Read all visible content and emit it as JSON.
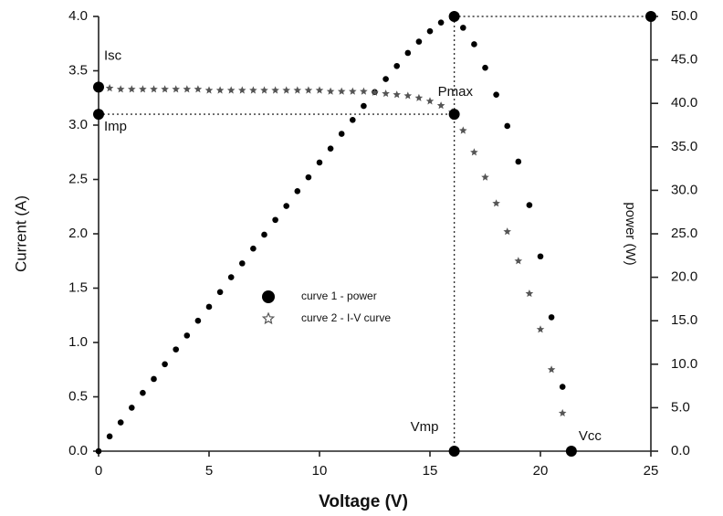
{
  "chart_data": {
    "type": "scatter",
    "x_label": "Voltage (V)",
    "y_label": "Current (A)",
    "y2_label": "power (W)",
    "x": [
      0,
      0.5,
      1,
      1.5,
      2,
      2.5,
      3,
      3.5,
      4,
      4.5,
      5,
      5.5,
      6,
      6.5,
      7,
      7.5,
      8,
      8.5,
      9,
      9.5,
      10,
      10.5,
      11,
      11.5,
      12,
      12.5,
      13,
      13.5,
      14,
      14.5,
      15,
      15.5,
      16,
      16.1,
      16.5,
      17,
      17.5,
      18,
      18.5,
      19,
      19.5,
      20,
      20.5,
      21,
      21.4
    ],
    "series": [
      {
        "name": "curve 1 - power",
        "color": "#000000",
        "marker": "circle",
        "axis": "y2",
        "values": [
          0,
          1.7,
          3.3,
          5.0,
          6.7,
          8.3,
          10.0,
          11.7,
          13.3,
          15.0,
          16.6,
          18.3,
          20.0,
          21.6,
          23.3,
          24.9,
          26.6,
          28.2,
          29.9,
          31.5,
          33.2,
          34.8,
          36.5,
          38.1,
          39.7,
          41.3,
          42.8,
          44.3,
          45.8,
          47.1,
          48.3,
          49.3,
          49.9,
          49.9,
          48.7,
          46.8,
          44.1,
          41.0,
          37.4,
          33.3,
          28.3,
          22.4,
          15.4,
          7.4,
          0
        ]
      },
      {
        "name": "curve 2 - I-V curve",
        "color": "#555555",
        "marker": "star",
        "axis": "y",
        "values": [
          3.35,
          3.34,
          3.33,
          3.33,
          3.33,
          3.33,
          3.33,
          3.33,
          3.33,
          3.33,
          3.32,
          3.32,
          3.32,
          3.32,
          3.32,
          3.32,
          3.32,
          3.32,
          3.32,
          3.32,
          3.32,
          3.31,
          3.31,
          3.31,
          3.31,
          3.3,
          3.29,
          3.28,
          3.27,
          3.25,
          3.22,
          3.18,
          3.12,
          3.1,
          2.95,
          2.75,
          2.52,
          2.28,
          2.02,
          1.75,
          1.45,
          1.12,
          0.75,
          0.35,
          0
        ]
      }
    ],
    "key_points": [
      {
        "label": "Isc",
        "x": 0,
        "y": 3.35,
        "axis": "y"
      },
      {
        "label": "Imp",
        "x": 0,
        "y": 3.1,
        "axis": "y"
      },
      {
        "label": "Pmax",
        "x": 16.1,
        "y": 3.1,
        "axis": "y"
      },
      {
        "label": "Vmp",
        "x": 16.1,
        "y": 0,
        "axis": "y"
      },
      {
        "label": "Vcc",
        "x": 21.4,
        "y": 0,
        "axis": "y"
      },
      {
        "x": 16.1,
        "y": 50,
        "axis": "y2"
      },
      {
        "x": 25,
        "y": 50,
        "axis": "y2"
      }
    ],
    "xlim": [
      0,
      25
    ],
    "xticks": [
      0,
      5,
      10,
      15,
      20,
      25
    ],
    "ylim": [
      0,
      4
    ],
    "yticks": [
      {
        "value": 0,
        "label": "0.0"
      },
      {
        "value": 0.5,
        "label": "0.5"
      },
      {
        "value": 1,
        "label": "1.0"
      },
      {
        "value": 1.5,
        "label": "1.5"
      },
      {
        "value": 2,
        "label": "2.0"
      },
      {
        "value": 2.5,
        "label": "2.5"
      },
      {
        "value": 3,
        "label": "3.0"
      },
      {
        "value": 3.5,
        "label": "3.5"
      },
      {
        "value": 4,
        "label": "4.0"
      }
    ],
    "y2lim": [
      0,
      50
    ],
    "y2ticks": [
      {
        "value": 0,
        "label": "0.0"
      },
      {
        "value": 5,
        "label": "5.0"
      },
      {
        "value": 10,
        "label": "10.0"
      },
      {
        "value": 15,
        "label": "15.0"
      },
      {
        "value": 20,
        "label": "20.0"
      },
      {
        "value": 25,
        "label": "25.0"
      },
      {
        "value": 30,
        "label": "30.0"
      },
      {
        "value": 35,
        "label": "35.0"
      },
      {
        "value": 40,
        "label": "40.0"
      },
      {
        "value": 45,
        "label": "45.0"
      },
      {
        "value": 50,
        "label": "50.0"
      }
    ],
    "grid": false
  }
}
